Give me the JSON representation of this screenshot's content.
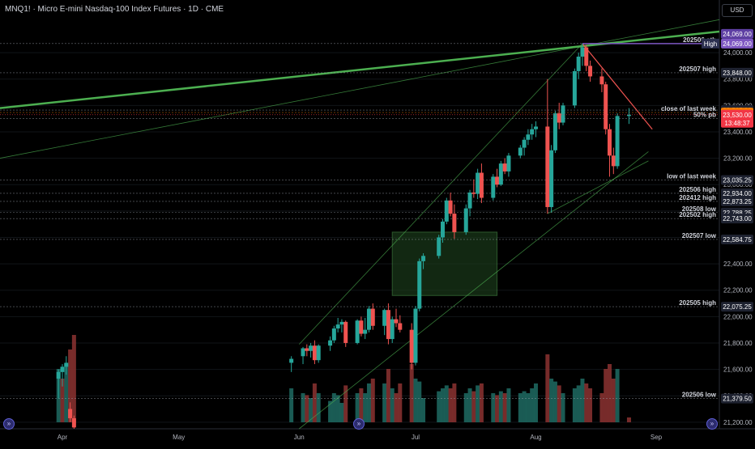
{
  "header": {
    "title": "MNQ1! · Micro E-mini Nasdaq-100 Index Futures · 1D · CME",
    "currency": "USD"
  },
  "icons": {
    "nav_left": "double-chevron-icon",
    "nav_mid": "double-chevron-icon",
    "nav_right": "double-chevron-icon"
  },
  "colors": {
    "background": "#000000",
    "up": "#26a69a",
    "down": "#ef5350",
    "volume_up": "#1f6b63",
    "volume_down": "#8c3331",
    "trendline_green": "#4caf50",
    "resistance_red": "#ef5350",
    "high_line": "#7e57c2",
    "box_fill": "#1b3a1b",
    "current_price": "#f23645",
    "close_last_week": "#f57c00"
  },
  "chart_data": {
    "type": "candlestick",
    "symbol": "MNQ1!",
    "timeframe": "1D",
    "exchange": "CME",
    "ylim": [
      21150,
      24350
    ],
    "y_ticks": [
      21200,
      21400,
      21600,
      21800,
      22000,
      22200,
      22400,
      22600,
      22800,
      23000,
      23200,
      23400,
      23600,
      23800,
      24000
    ],
    "x_labels": [
      "Apr",
      "May",
      "Jun",
      "Jul",
      "Aug",
      "Sep"
    ],
    "candles": [
      {
        "date": "2025-03-31",
        "o": 21530,
        "h": 21600,
        "l": 21380,
        "c": 21580
      },
      {
        "date": "2025-04-01",
        "o": 21580,
        "h": 21640,
        "l": 21470,
        "c": 21620
      },
      {
        "date": "2025-04-02",
        "o": 21620,
        "h": 21700,
        "l": 21560,
        "c": 21650
      },
      {
        "date": "2025-04-03",
        "o": 21300,
        "h": 21350,
        "l": 21200,
        "c": 21230
      },
      {
        "date": "2025-04-04",
        "o": 21230,
        "h": 21250,
        "l": 21150,
        "c": 21160
      },
      {
        "date": "2025-05-30",
        "o": 21650,
        "h": 21700,
        "l": 21580,
        "c": 21680
      },
      {
        "date": "2025-06-02",
        "o": 21700,
        "h": 21770,
        "l": 21640,
        "c": 21760
      },
      {
        "date": "2025-06-03",
        "o": 21760,
        "h": 21790,
        "l": 21700,
        "c": 21740
      },
      {
        "date": "2025-06-04",
        "o": 21740,
        "h": 21800,
        "l": 21690,
        "c": 21780
      },
      {
        "date": "2025-06-05",
        "o": 21780,
        "h": 21820,
        "l": 21640,
        "c": 21670
      },
      {
        "date": "2025-06-06",
        "o": 21670,
        "h": 21790,
        "l": 21650,
        "c": 21780
      },
      {
        "date": "2025-06-09",
        "o": 21780,
        "h": 21850,
        "l": 21740,
        "c": 21820
      },
      {
        "date": "2025-06-10",
        "o": 21820,
        "h": 21930,
        "l": 21800,
        "c": 21910
      },
      {
        "date": "2025-06-11",
        "o": 21910,
        "h": 21990,
        "l": 21880,
        "c": 21940
      },
      {
        "date": "2025-06-12",
        "o": 21940,
        "h": 21980,
        "l": 21880,
        "c": 21960
      },
      {
        "date": "2025-06-13",
        "o": 21960,
        "h": 21970,
        "l": 21770,
        "c": 21800
      },
      {
        "date": "2025-06-16",
        "o": 21800,
        "h": 21980,
        "l": 21790,
        "c": 21970
      },
      {
        "date": "2025-06-17",
        "o": 21970,
        "h": 22000,
        "l": 21850,
        "c": 21870
      },
      {
        "date": "2025-06-18",
        "o": 21870,
        "h": 21990,
        "l": 21830,
        "c": 21900
      },
      {
        "date": "2025-06-19",
        "o": 21900,
        "h": 22080,
        "l": 21880,
        "c": 22060
      },
      {
        "date": "2025-06-20",
        "o": 22060,
        "h": 22100,
        "l": 21900,
        "c": 21930
      },
      {
        "date": "2025-06-23",
        "o": 21930,
        "h": 22060,
        "l": 21860,
        "c": 22050
      },
      {
        "date": "2025-06-24",
        "o": 22050,
        "h": 22100,
        "l": 21790,
        "c": 21830
      },
      {
        "date": "2025-06-25",
        "o": 21830,
        "h": 22000,
        "l": 21800,
        "c": 21980
      },
      {
        "date": "2025-06-26",
        "o": 21980,
        "h": 22060,
        "l": 21920,
        "c": 21950
      },
      {
        "date": "2025-06-27",
        "o": 21950,
        "h": 22010,
        "l": 21880,
        "c": 21900
      },
      {
        "date": "2025-06-30",
        "o": 21900,
        "h": 21950,
        "l": 21600,
        "c": 21650
      },
      {
        "date": "2025-07-01",
        "o": 21650,
        "h": 22080,
        "l": 21630,
        "c": 22060
      },
      {
        "date": "2025-07-02",
        "o": 22060,
        "h": 22440,
        "l": 22040,
        "c": 22420
      },
      {
        "date": "2025-07-03",
        "o": 22420,
        "h": 22480,
        "l": 22360,
        "c": 22460
      },
      {
        "date": "2025-07-07",
        "o": 22460,
        "h": 22620,
        "l": 22440,
        "c": 22600
      },
      {
        "date": "2025-07-08",
        "o": 22600,
        "h": 22740,
        "l": 22560,
        "c": 22720
      },
      {
        "date": "2025-07-09",
        "o": 22720,
        "h": 22900,
        "l": 22700,
        "c": 22880
      },
      {
        "date": "2025-07-10",
        "o": 22880,
        "h": 22940,
        "l": 22760,
        "c": 22780
      },
      {
        "date": "2025-07-11",
        "o": 22780,
        "h": 22850,
        "l": 22590,
        "c": 22640
      },
      {
        "date": "2025-07-14",
        "o": 22640,
        "h": 22850,
        "l": 22620,
        "c": 22820
      },
      {
        "date": "2025-07-15",
        "o": 22820,
        "h": 22960,
        "l": 22760,
        "c": 22940
      },
      {
        "date": "2025-07-16",
        "o": 22940,
        "h": 23040,
        "l": 22900,
        "c": 22930
      },
      {
        "date": "2025-07-17",
        "o": 22930,
        "h": 23120,
        "l": 22890,
        "c": 23090
      },
      {
        "date": "2025-07-18",
        "o": 23090,
        "h": 23160,
        "l": 22860,
        "c": 22900
      },
      {
        "date": "2025-07-21",
        "o": 22900,
        "h": 23080,
        "l": 22880,
        "c": 23060
      },
      {
        "date": "2025-07-22",
        "o": 23060,
        "h": 23120,
        "l": 22980,
        "c": 23000
      },
      {
        "date": "2025-07-23",
        "o": 23000,
        "h": 23180,
        "l": 22990,
        "c": 23160
      },
      {
        "date": "2025-07-24",
        "o": 23160,
        "h": 23200,
        "l": 23080,
        "c": 23100
      },
      {
        "date": "2025-07-25",
        "o": 23100,
        "h": 23240,
        "l": 23060,
        "c": 23220
      },
      {
        "date": "2025-07-28",
        "o": 23220,
        "h": 23300,
        "l": 23200,
        "c": 23280
      },
      {
        "date": "2025-07-29",
        "o": 23280,
        "h": 23360,
        "l": 23220,
        "c": 23340
      },
      {
        "date": "2025-07-30",
        "o": 23340,
        "h": 23420,
        "l": 23300,
        "c": 23380
      },
      {
        "date": "2025-07-31",
        "o": 23380,
        "h": 23460,
        "l": 23340,
        "c": 23420
      },
      {
        "date": "2025-08-01",
        "o": 23420,
        "h": 23480,
        "l": 23360,
        "c": 23440
      },
      {
        "date": "2025-08-04",
        "o": 23440,
        "h": 23800,
        "l": 22780,
        "c": 22830
      },
      {
        "date": "2025-08-05",
        "o": 22830,
        "h": 23300,
        "l": 22790,
        "c": 23260
      },
      {
        "date": "2025-08-06",
        "o": 23260,
        "h": 23560,
        "l": 23240,
        "c": 23540
      },
      {
        "date": "2025-08-07",
        "o": 23540,
        "h": 23620,
        "l": 23420,
        "c": 23470
      },
      {
        "date": "2025-08-08",
        "o": 23470,
        "h": 23620,
        "l": 23450,
        "c": 23600
      },
      {
        "date": "2025-08-11",
        "o": 23600,
        "h": 23880,
        "l": 23580,
        "c": 23860
      },
      {
        "date": "2025-08-12",
        "o": 23860,
        "h": 24000,
        "l": 23800,
        "c": 23970
      },
      {
        "date": "2025-08-13",
        "o": 23970,
        "h": 24069,
        "l": 23900,
        "c": 24040
      },
      {
        "date": "2025-08-14",
        "o": 24040,
        "h": 24060,
        "l": 23860,
        "c": 23900
      },
      {
        "date": "2025-08-15",
        "o": 23900,
        "h": 23940,
        "l": 23780,
        "c": 23820
      },
      {
        "date": "2025-08-18",
        "o": 23820,
        "h": 23880,
        "l": 23700,
        "c": 23760
      },
      {
        "date": "2025-08-19",
        "o": 23760,
        "h": 23780,
        "l": 23380,
        "c": 23420
      },
      {
        "date": "2025-08-20",
        "o": 23420,
        "h": 23460,
        "l": 23060,
        "c": 23220
      },
      {
        "date": "2025-08-21",
        "o": 23220,
        "h": 23280,
        "l": 23080,
        "c": 23140
      },
      {
        "date": "2025-08-22",
        "o": 23140,
        "h": 23540,
        "l": 23120,
        "c": 23520
      },
      {
        "date": "2025-08-25",
        "o": 23520,
        "h": 23580,
        "l": 23460,
        "c": 23530
      }
    ],
    "volume": [
      {
        "v": 0.55,
        "up": true
      },
      {
        "v": 0.45,
        "up": false
      },
      {
        "v": 0.6,
        "up": true
      },
      {
        "v": 0.75,
        "up": false
      },
      {
        "v": 0.9,
        "up": false
      },
      {
        "v": 0.35,
        "up": true
      },
      {
        "v": 0.3,
        "up": true
      },
      {
        "v": 0.28,
        "up": false
      },
      {
        "v": 0.25,
        "up": true
      },
      {
        "v": 0.4,
        "up": false
      },
      {
        "v": 0.3,
        "up": true
      },
      {
        "v": 0.22,
        "up": true
      },
      {
        "v": 0.3,
        "up": true
      },
      {
        "v": 0.28,
        "up": true
      },
      {
        "v": 0.2,
        "up": true
      },
      {
        "v": 0.38,
        "up": false
      },
      {
        "v": 0.3,
        "up": true
      },
      {
        "v": 0.35,
        "up": false
      },
      {
        "v": 0.3,
        "up": true
      },
      {
        "v": 0.4,
        "up": true
      },
      {
        "v": 0.45,
        "up": false
      },
      {
        "v": 0.4,
        "up": true
      },
      {
        "v": 0.55,
        "up": false
      },
      {
        "v": 0.35,
        "up": true
      },
      {
        "v": 0.3,
        "up": false
      },
      {
        "v": 0.4,
        "up": false
      },
      {
        "v": 0.6,
        "up": false
      },
      {
        "v": 0.45,
        "up": true
      },
      {
        "v": 0.42,
        "up": true
      },
      {
        "v": 0.25,
        "up": true
      },
      {
        "v": 0.32,
        "up": true
      },
      {
        "v": 0.35,
        "up": true
      },
      {
        "v": 0.38,
        "up": true
      },
      {
        "v": 0.35,
        "up": false
      },
      {
        "v": 0.4,
        "up": false
      },
      {
        "v": 0.3,
        "up": true
      },
      {
        "v": 0.35,
        "up": true
      },
      {
        "v": 0.32,
        "up": false
      },
      {
        "v": 0.38,
        "up": true
      },
      {
        "v": 0.4,
        "up": false
      },
      {
        "v": 0.3,
        "up": true
      },
      {
        "v": 0.28,
        "up": false
      },
      {
        "v": 0.32,
        "up": true
      },
      {
        "v": 0.3,
        "up": false
      },
      {
        "v": 0.35,
        "up": true
      },
      {
        "v": 0.3,
        "up": true
      },
      {
        "v": 0.32,
        "up": true
      },
      {
        "v": 0.3,
        "up": true
      },
      {
        "v": 0.35,
        "up": true
      },
      {
        "v": 0.4,
        "up": true
      },
      {
        "v": 0.7,
        "up": false
      },
      {
        "v": 0.45,
        "up": true
      },
      {
        "v": 0.42,
        "up": true
      },
      {
        "v": 0.38,
        "up": false
      },
      {
        "v": 0.3,
        "up": true
      },
      {
        "v": 0.35,
        "up": true
      },
      {
        "v": 0.38,
        "up": true
      },
      {
        "v": 0.45,
        "up": true
      },
      {
        "v": 0.4,
        "up": false
      },
      {
        "v": 0.35,
        "up": false
      },
      {
        "v": 0.3,
        "up": false
      },
      {
        "v": 0.55,
        "up": false
      },
      {
        "v": 0.6,
        "up": false
      },
      {
        "v": 0.45,
        "up": false
      },
      {
        "v": 0.55,
        "up": true
      },
      {
        "v": 0.05,
        "up": false
      }
    ],
    "levels": [
      {
        "label": "202506 ath",
        "value": 24069.0,
        "tag": "24,069.00",
        "color": "#9aa0aa"
      },
      {
        "label": "202507 high",
        "value": 23848.0,
        "tag": "23,848.00",
        "color": "#9aa0aa"
      },
      {
        "label": "",
        "value": 23565.0,
        "tag": "23,565.00",
        "color": "#9aa0aa"
      },
      {
        "label": "close of last week",
        "value": 23546.25,
        "tag": "23,546.25",
        "color": "#f57c00"
      },
      {
        "label": "50% pb",
        "value": 23500,
        "tag": "",
        "color": "#9aa0aa"
      },
      {
        "label": "low of last week",
        "value": 23035.25,
        "tag": "23,035.25",
        "color": "#9aa0aa"
      },
      {
        "label": "202506 high",
        "value": 22934.0,
        "tag": "22,934.00",
        "color": "#9aa0aa"
      },
      {
        "label": "202412 high",
        "value": 22873.25,
        "tag": "22,873.25",
        "color": "#9aa0aa"
      },
      {
        "label": "202508 low",
        "value": 22788.25,
        "tag": "22,788.25",
        "color": "#9aa0aa"
      },
      {
        "label": "202502 high",
        "value": 22743.0,
        "tag": "22,743.00",
        "color": "#9aa0aa"
      },
      {
        "label": "202507 low",
        "value": 22584.75,
        "tag": "22,584.75",
        "color": "#9aa0aa"
      },
      {
        "label": "202505 high",
        "value": 22075.25,
        "tag": "22,075.25",
        "color": "#9aa0aa"
      },
      {
        "label": "202506 low",
        "value": 21379.5,
        "tag": "21,379.50",
        "color": "#9aa0aa"
      }
    ],
    "high_marker": {
      "label": "High",
      "value": 24069.0,
      "tag": "24,069.00"
    },
    "current_price": {
      "value": 23530.0,
      "tag": "23,530.00",
      "countdown": "13:48:37"
    }
  }
}
